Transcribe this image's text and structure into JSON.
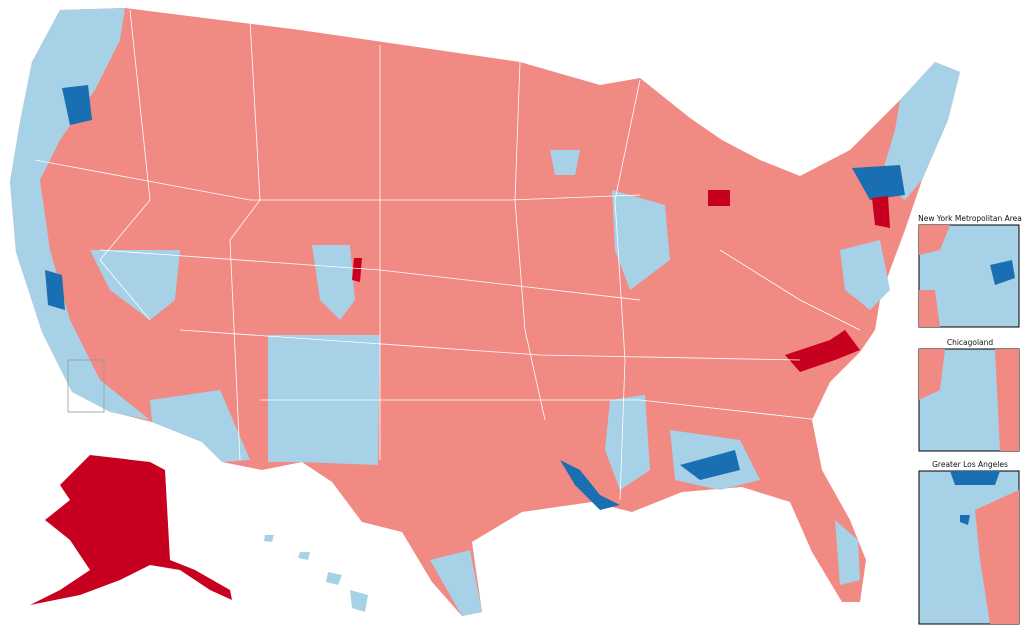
{
  "insets": [
    {
      "label": "New York Metropolitan Area"
    },
    {
      "label": "Chicagoland"
    },
    {
      "label": "Greater Los Angeles"
    }
  ]
}
